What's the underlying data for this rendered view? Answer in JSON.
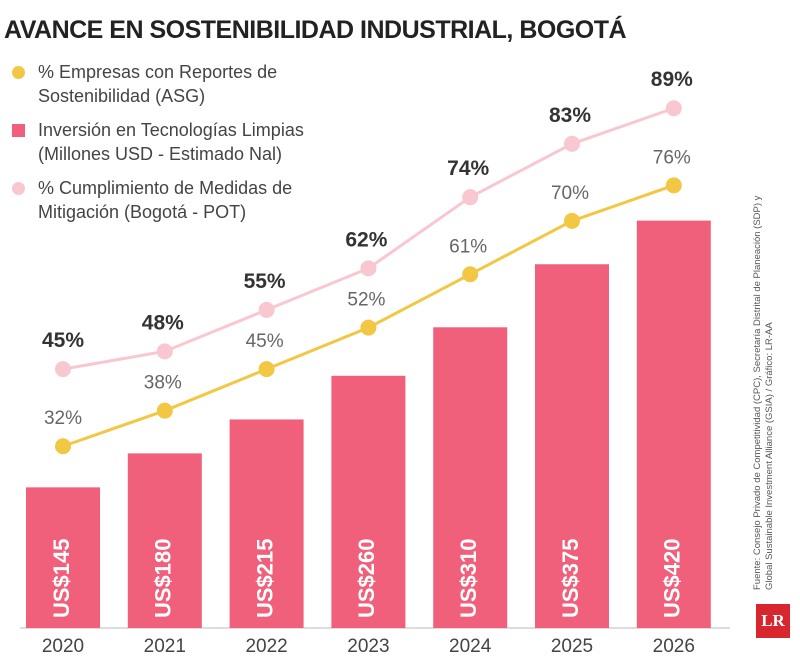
{
  "chart_data": {
    "type": "bar",
    "title": "AVANCE EN SOSTENIBILIDAD INDUSTRIAL, BOGOTÁ",
    "categories": [
      "2020",
      "2021",
      "2022",
      "2023",
      "2024",
      "2025",
      "2026"
    ],
    "series": [
      {
        "name": "% Empresas con Reportes de Sostenibilidad (ASG)",
        "type": "line",
        "color": "#f2c744",
        "values": [
          32,
          38,
          45,
          52,
          61,
          70,
          76
        ],
        "value_labels": [
          "32%",
          "38%",
          "45%",
          "52%",
          "61%",
          "70%",
          "76%"
        ]
      },
      {
        "name": "Inversión en Tecnologías Limpias (Millones USD - Estimado Nal)",
        "type": "bar",
        "color": "#f0607a",
        "values": [
          145,
          180,
          215,
          260,
          310,
          375,
          420
        ],
        "value_labels": [
          "US$145",
          "US$180",
          "US$215",
          "US$260",
          "US$310",
          "US$375",
          "US$420"
        ]
      },
      {
        "name": "% Cumplimiento de Medidas de Mitigación (Bogotá - POT)",
        "type": "line",
        "color": "#f9c7d0",
        "values": [
          45,
          48,
          55,
          62,
          74,
          83,
          89
        ],
        "value_labels": [
          "45%",
          "48%",
          "55%",
          "62%",
          "74%",
          "83%",
          "89%"
        ]
      }
    ],
    "source": "Fuente: Consejo Privado de Competitividad (CPC), Secretaría Distrital de Planeación (SDP) y Global Sustainable Investment Alliance (GSIA) / Gráfico: LR-AA",
    "logo": "LR"
  }
}
